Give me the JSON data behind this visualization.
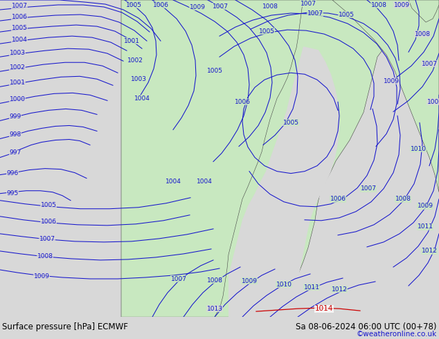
{
  "title_left": "Surface pressure [hPa] ECMWF",
  "title_right": "Sa 08-06-2024 06:00 UTC (00+78)",
  "credit": "©weatheronline.co.uk",
  "bg_color": "#d8d8d8",
  "land_color": "#c8e8c0",
  "sea_color": "#d8d8d8",
  "contour_color": "#1414cc",
  "bottom_bar_color": "#ffffff",
  "bottom_text_color": "#000000",
  "credit_color": "#1414cc",
  "red_label_color": "#cc0000",
  "figsize": [
    6.34,
    4.9
  ],
  "dpi": 100,
  "font_size_bottom": 8.5,
  "font_size_credit": 7.5,
  "font_size_label": 6.5,
  "lw": 0.75
}
